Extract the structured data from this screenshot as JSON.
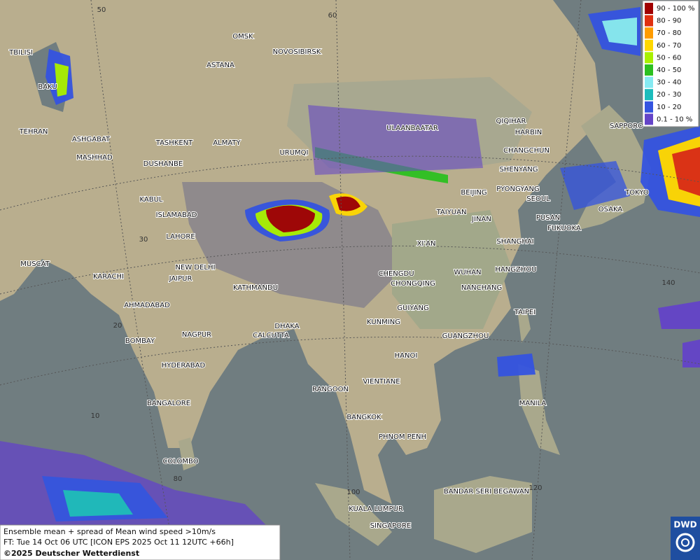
{
  "legend": {
    "items": [
      {
        "label": "90 - 100 %",
        "color": "#a00000"
      },
      {
        "label": "80 - 90",
        "color": "#e03010"
      },
      {
        "label": "70 - 80",
        "color": "#ff9c00"
      },
      {
        "label": "60 - 70",
        "color": "#ffd800"
      },
      {
        "label": "50 - 60",
        "color": "#a8f000"
      },
      {
        "label": "40 - 50",
        "color": "#2cc020"
      },
      {
        "label": "30 - 40",
        "color": "#86eaf2"
      },
      {
        "label": "20 - 30",
        "color": "#1cbcbc"
      },
      {
        "label": "10 - 20",
        "color": "#3454e0"
      },
      {
        "label": "0.1 - 10 %",
        "color": "#6444c8"
      }
    ]
  },
  "cities": [
    "OMSK",
    "NOVOSIBIRSK",
    "ASTANA",
    "TBILISI",
    "BAKU",
    "TEHRAN",
    "ASHGABAT",
    "MASHHAD",
    "TASHKENT",
    "ALMATY",
    "DUSHANBE",
    "URUMQI",
    "ULAANBAATAR",
    "QIQIHAR",
    "HARBIN",
    "CHANGCHUN",
    "SHENYANG",
    "BEIJING",
    "PYONGYANG",
    "SEOUL",
    "SAPPORO",
    "TOKYO",
    "OSAKA",
    "PUSAN",
    "FUKUOKA",
    "KABUL",
    "ISLAMABAD",
    "LAHORE",
    "TAIYUAN",
    "JINAN",
    "XI'AN",
    "SHANGHAI",
    "HANGZHOU",
    "WUHAN",
    "NEW DELHI",
    "MUSCAT",
    "KARACHI",
    "JAIPUR",
    "KATHMANDU",
    "CHENGDU",
    "CHONGQING",
    "NANCHANG",
    "AHMADABAD",
    "GUIYANG",
    "TAIPEI",
    "DHAKA",
    "KUNMING",
    "NAGPUR",
    "CALCUTTA",
    "GUANGZHOU",
    "BOMBAY",
    "HANOI",
    "HYDERABAD",
    "RANGOON",
    "VIENTIANE",
    "BANGALORE",
    "MANILA",
    "BANGKOK",
    "PHNOM PENH",
    "COLOMBO",
    "BANDAR SERI BEGAWAN",
    "KUALA LUMPUR",
    "SINGAPORE"
  ],
  "grid_labels": [
    "50",
    "60",
    "30",
    "20",
    "10",
    "140",
    "80",
    "100",
    "120"
  ],
  "caption": {
    "line1": "Ensemble mean + spread of Mean wind speed >10m/s",
    "line2": "FT: Tue 14 Oct 06 UTC [ICON EPS 2025 Oct 11 12UTC +66h]",
    "line3": "©2025 Deutscher Wetterdienst"
  },
  "logo": "DWD"
}
